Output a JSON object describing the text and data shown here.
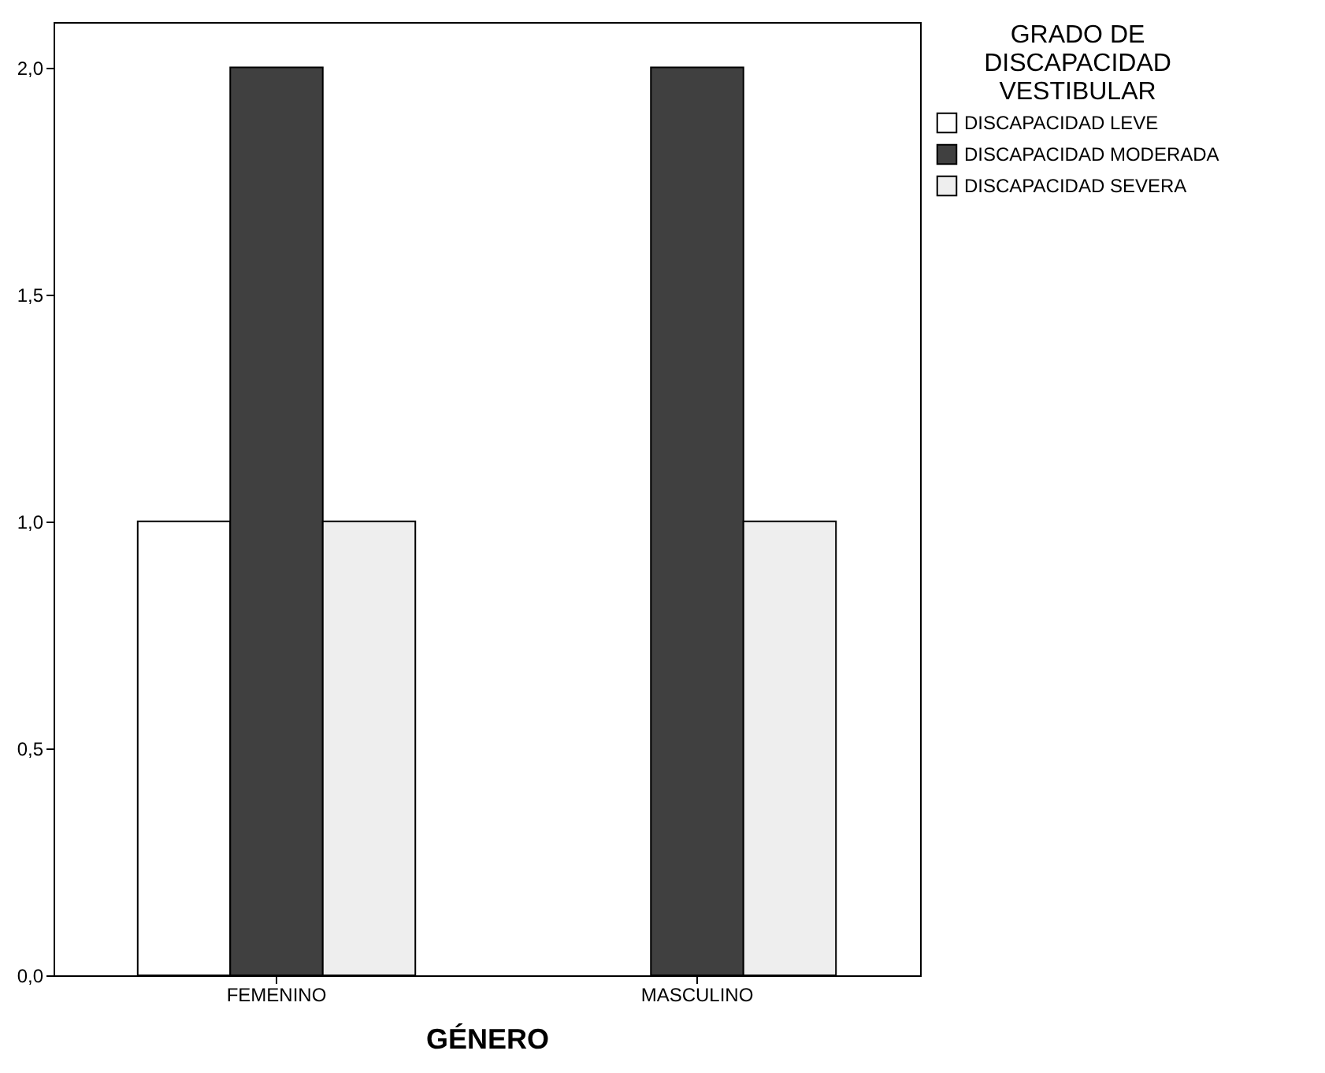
{
  "chart_data": {
    "type": "bar",
    "xlabel": "GÉNERO",
    "legend_title": "GRADO DE DISCAPACIDAD VESTIBULAR",
    "categories": [
      "FEMENINO",
      "MASCULINO"
    ],
    "series": [
      {
        "name": "DISCAPACIDAD LEVE",
        "color": "#ffffff",
        "values": [
          1,
          null
        ]
      },
      {
        "name": "DISCAPACIDAD MODERADA",
        "color": "#404040",
        "values": [
          2,
          2
        ]
      },
      {
        "name": "DISCAPACIDAD SEVERA",
        "color": "#eeeeee",
        "values": [
          1,
          1
        ]
      }
    ],
    "ylim": [
      0,
      2.1
    ],
    "yticks": [
      {
        "value": 0,
        "label": "0,0"
      },
      {
        "value": 0.5,
        "label": "0,5"
      },
      {
        "value": 1,
        "label": "1,0"
      },
      {
        "value": 1.5,
        "label": "1,5"
      },
      {
        "value": 2,
        "label": "2,0"
      }
    ],
    "grid": false,
    "legend": "top right"
  }
}
